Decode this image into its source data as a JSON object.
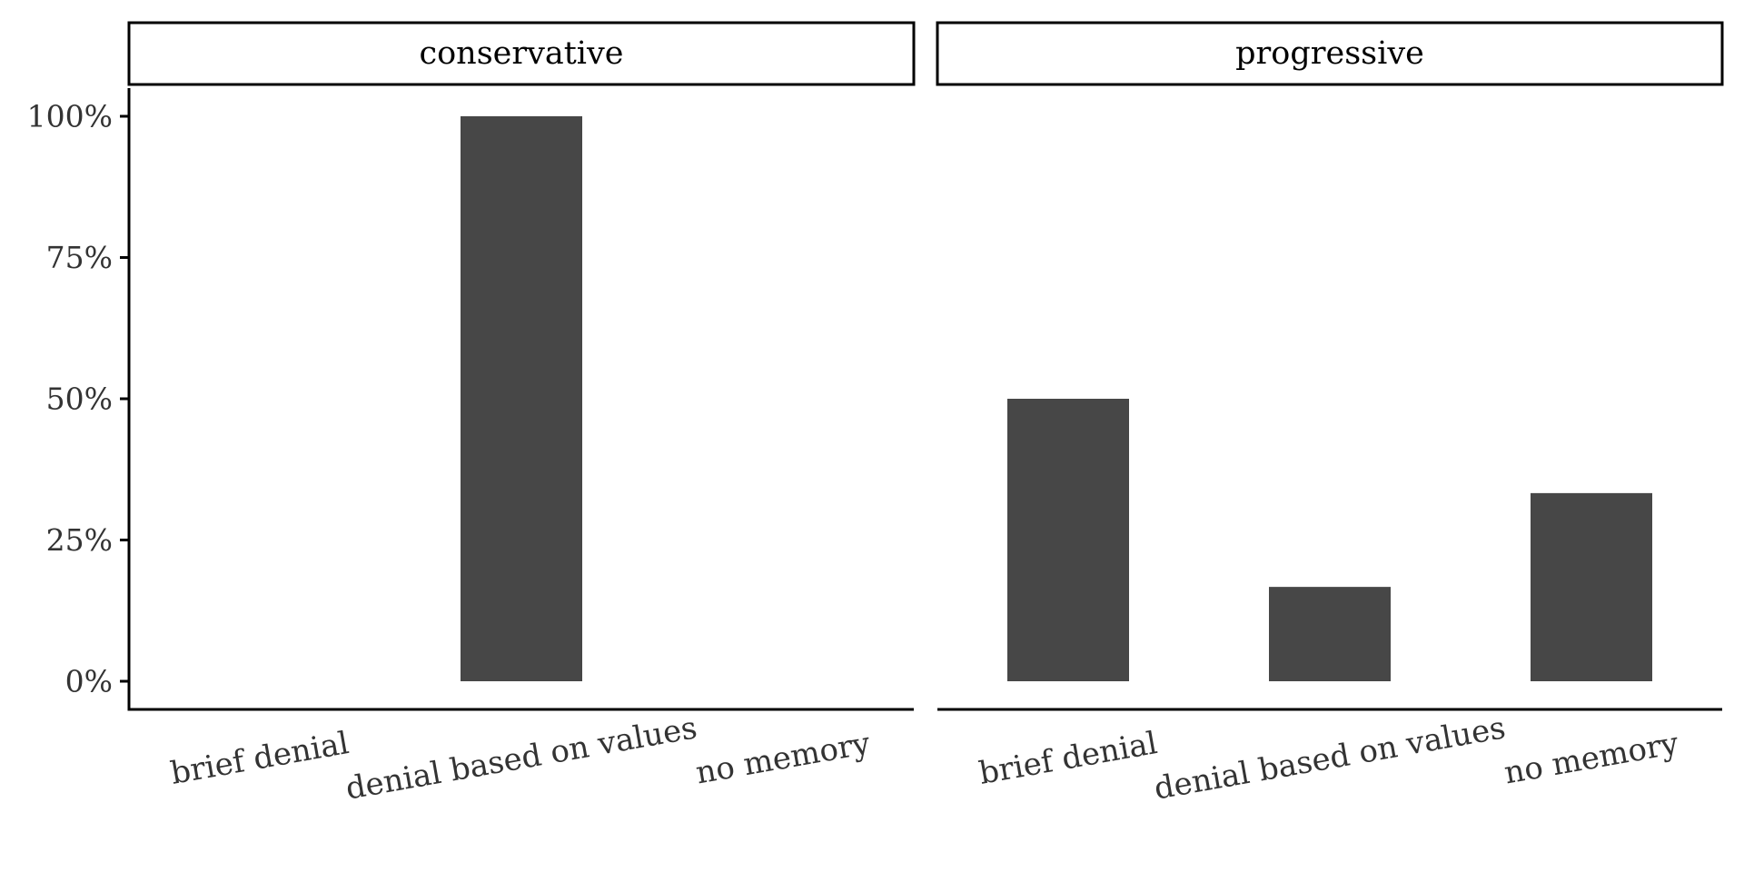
{
  "chart_data": {
    "type": "bar",
    "facets": [
      "conservative",
      "progressive"
    ],
    "categories": [
      "brief denial",
      "denial based on values",
      "no memory"
    ],
    "panels": [
      {
        "facet": "conservative",
        "values": [
          0,
          100,
          0
        ]
      },
      {
        "facet": "progressive",
        "values": [
          50,
          16.7,
          33.3
        ]
      }
    ],
    "ylim": [
      0,
      100
    ],
    "yticks": [
      0,
      25,
      50,
      75,
      100
    ],
    "ytick_labels": [
      "0%",
      "25%",
      "50%",
      "75%",
      "100%"
    ],
    "title": "",
    "xlabel": "",
    "ylabel": "",
    "grid": false,
    "legend": "none",
    "colors": {
      "bar": "#474747",
      "axis": "#000000",
      "text": "#333333"
    }
  }
}
